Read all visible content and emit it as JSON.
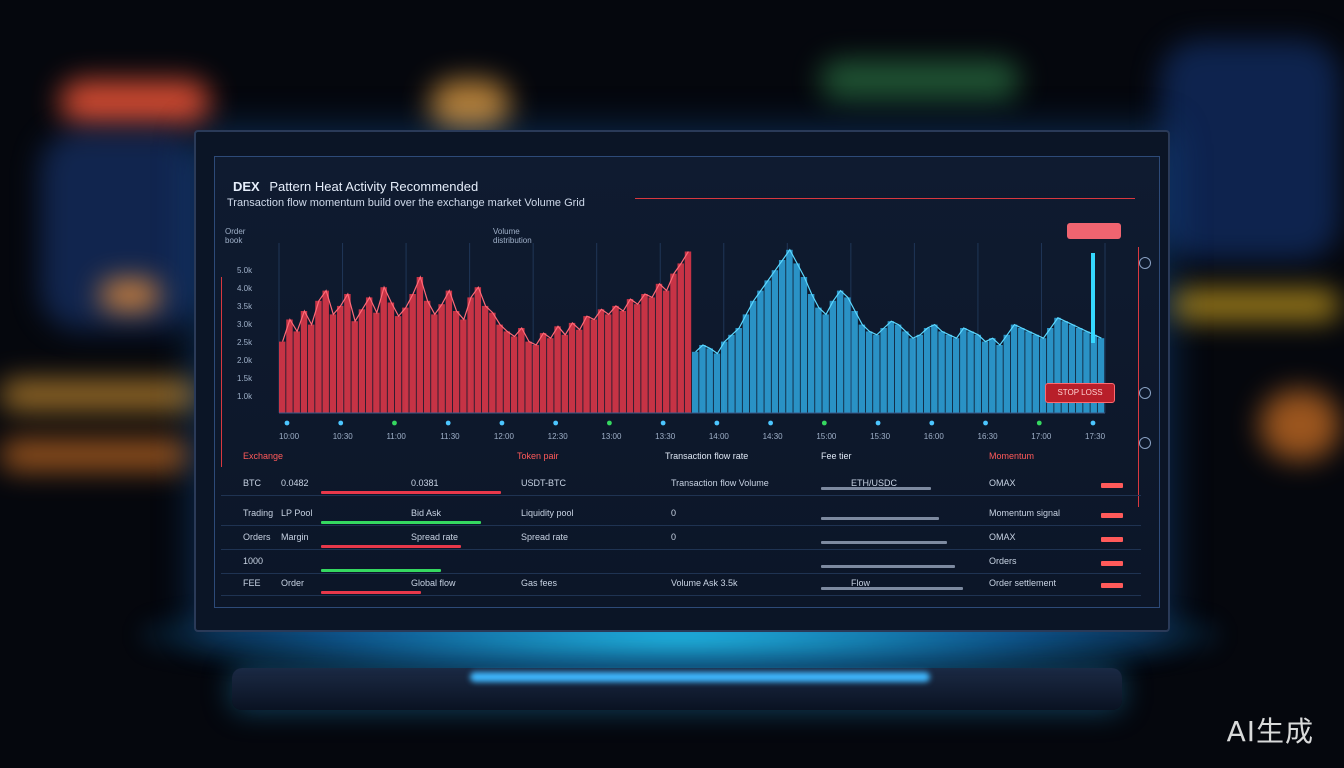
{
  "app": {
    "brand": "DEX",
    "title": "Pattern Heat Activity Recommended",
    "subtitle": "Transaction flow momentum build over the exchange market Volume Grid",
    "watermark": "AI生成"
  },
  "chart": {
    "top_left_label": "Order book",
    "top_mid_label": "Volume distribution",
    "y_ticks": [
      "5.0k",
      "4.0k",
      "3.5k",
      "3.0k",
      "2.5k",
      "2.0k",
      "1.5k",
      "1.0k"
    ],
    "x_ticks": [
      "10:00",
      "10:30",
      "11:00",
      "11:30",
      "12:00",
      "12:30",
      "13:00",
      "13:30",
      "14:00",
      "14:30",
      "15:00",
      "15:30",
      "16:00",
      "16:30",
      "17:00",
      "17:30"
    ],
    "badge_bottom": "STOP LOSS",
    "colors": {
      "sell": "#e8384a",
      "buy": "#2fa8e0",
      "accent": "#ff6470",
      "cyan": "#35d8ff",
      "green": "#35d860"
    }
  },
  "chart_data": {
    "type": "bar",
    "series": [
      {
        "name": "sell",
        "values": [
          42,
          55,
          48,
          60,
          52,
          66,
          72,
          58,
          63,
          70,
          54,
          61,
          68,
          59,
          74,
          65,
          57,
          62,
          70,
          80,
          66,
          58,
          64,
          72,
          60,
          55,
          68,
          74,
          63,
          59,
          52,
          48,
          45,
          50,
          42,
          40,
          47,
          44,
          51,
          46,
          53,
          49,
          57,
          55,
          61,
          58,
          63,
          60,
          67,
          64,
          70,
          68,
          76,
          72,
          82,
          88,
          95
        ]
      },
      {
        "name": "buy",
        "values": [
          36,
          40,
          38,
          35,
          42,
          46,
          50,
          58,
          66,
          72,
          78,
          84,
          90,
          96,
          88,
          80,
          70,
          62,
          58,
          66,
          72,
          68,
          60,
          52,
          48,
          46,
          50,
          54,
          52,
          48,
          44,
          46,
          50,
          52,
          48,
          46,
          44,
          50,
          48,
          46,
          42,
          44,
          40,
          46,
          52,
          50,
          48,
          46,
          44,
          50,
          56,
          54,
          52,
          50,
          48,
          46,
          44
        ]
      }
    ],
    "ylim": [
      0,
      100
    ]
  },
  "table": {
    "headers": [
      "Exchange",
      "Token pair",
      "Transaction flow rate",
      "Fee tier",
      "Momentum"
    ],
    "rows": [
      {
        "c1": "BTC",
        "c2": "0.0482",
        "c3": "0.0381",
        "c4": "USDT-BTC",
        "c5": "Transaction flow Volume",
        "c6": "ETH/USDC",
        "c7": "OMAX"
      },
      {
        "c1": "Trading",
        "c2": "LP Pool",
        "c3": "Bid Ask",
        "c4": "Liquidity pool",
        "c5": "0",
        "c6": "",
        "c7": "Momentum signal"
      },
      {
        "c1": "Orders",
        "c2": "Margin",
        "c3": "Spread rate",
        "c4": "Spread rate",
        "c5": "0",
        "c6": "",
        "c7": "OMAX"
      },
      {
        "c1": "1000",
        "c2": "",
        "c3": "",
        "c4": "",
        "c5": "",
        "c6": "",
        "c7": "Orders"
      },
      {
        "c1": "FEE",
        "c2": "Order",
        "c3": "Global flow",
        "c4": "Gas fees",
        "c5": "Volume Ask 3.5k",
        "c6": "Flow",
        "c7": "Order settlement"
      }
    ]
  }
}
